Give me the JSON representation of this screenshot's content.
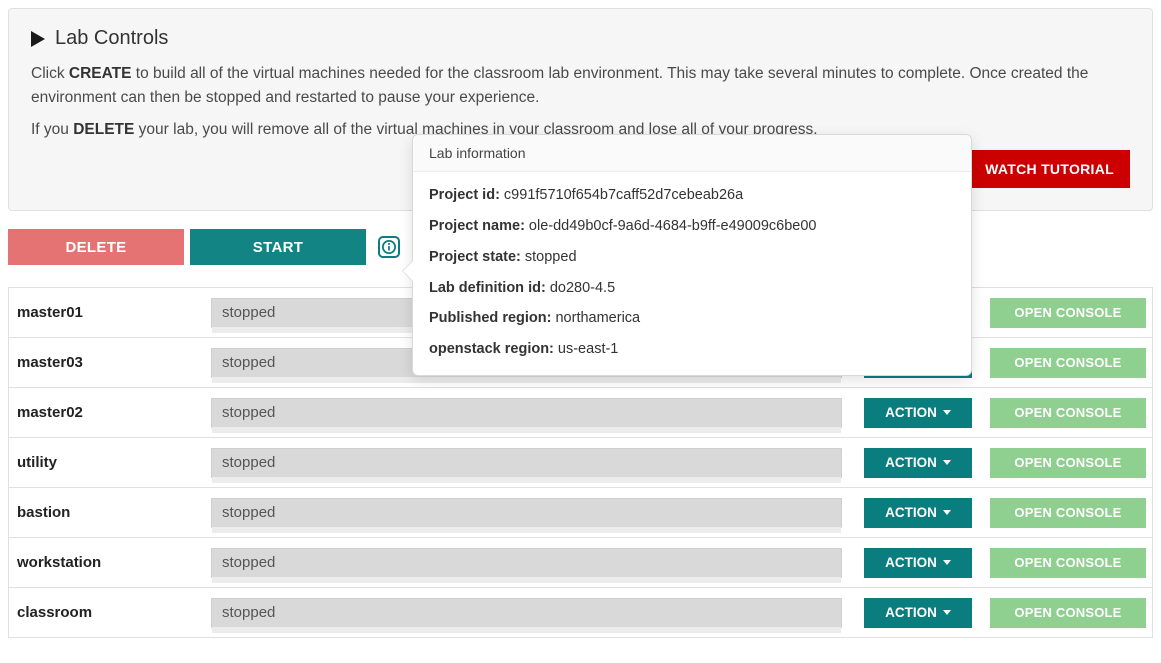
{
  "colors": {
    "panel_bg": "#f6f6f6",
    "border": "#e0e0e0",
    "btn_red": "#cc0000",
    "btn_rose": "#e57373",
    "btn_teal": "#128484",
    "btn_tealish": "#0a7e7e",
    "btn_green": "#8fcf8f",
    "status_bg": "#d9d9d9",
    "text": "#333333"
  },
  "panel": {
    "heading": "Lab Controls",
    "para1_pre": "Click ",
    "para1_strong": "CREATE",
    "para1_post": " to build all of the virtual machines needed for the classroom lab environment. This may take several minutes to complete. Once created the environment can then be stopped and restarted to pause your experience.",
    "para2_pre": "If you ",
    "para2_strong": "DELETE",
    "para2_post": " your lab, you will remove all of the virtual machines in your classroom and lose all of your progress.",
    "watch_tutorial": "WATCH TUTORIAL"
  },
  "controls": {
    "delete_label": "DELETE",
    "start_label": "START"
  },
  "popover": {
    "title": "Lab information",
    "fields": [
      {
        "label": "Project id:",
        "value": "c991f5710f654b7caff52d7cebeab26a"
      },
      {
        "label": "Project name:",
        "value": "ole-dd49b0cf-9a6d-4684-b9ff-e49009c6be00"
      },
      {
        "label": "Project state:",
        "value": "stopped"
      },
      {
        "label": "Lab definition id:",
        "value": "do280-4.5"
      },
      {
        "label": "Published region:",
        "value": "northamerica"
      },
      {
        "label": "openstack region:",
        "value": "us-east-1"
      }
    ]
  },
  "vm_common": {
    "action_label": "ACTION",
    "console_label": "OPEN CONSOLE"
  },
  "vms": [
    {
      "name": "master01",
      "status": "stopped"
    },
    {
      "name": "master03",
      "status": "stopped"
    },
    {
      "name": "master02",
      "status": "stopped"
    },
    {
      "name": "utility",
      "status": "stopped"
    },
    {
      "name": "bastion",
      "status": "stopped"
    },
    {
      "name": "workstation",
      "status": "stopped"
    },
    {
      "name": "classroom",
      "status": "stopped"
    }
  ]
}
